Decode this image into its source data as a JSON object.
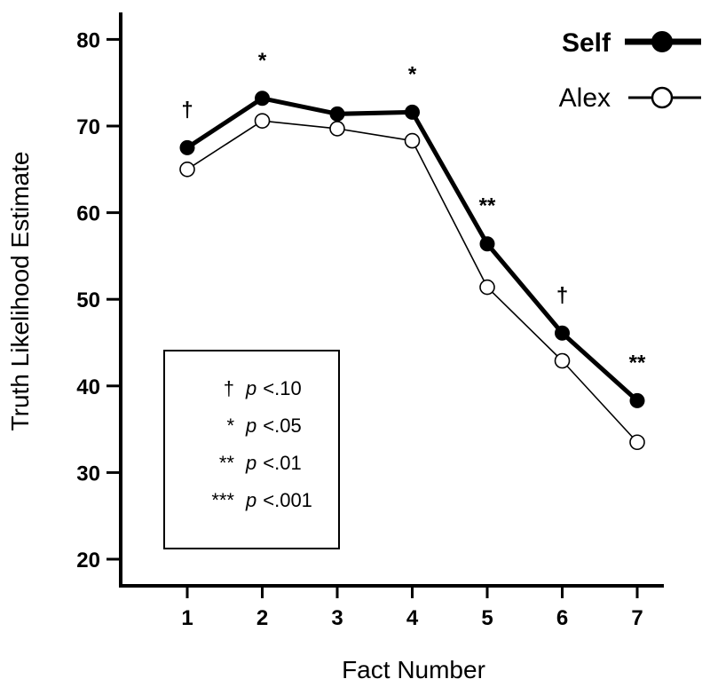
{
  "chart_data": {
    "type": "line",
    "title": "",
    "xlabel": "Fact Number",
    "ylabel": "Truth Likelihood Estimate",
    "x": [
      1,
      2,
      3,
      4,
      5,
      6,
      7
    ],
    "xticks": [
      "1",
      "2",
      "3",
      "4",
      "5",
      "6",
      "7"
    ],
    "yticks": [
      "20",
      "30",
      "40",
      "50",
      "60",
      "70",
      "80"
    ],
    "ylim": [
      20,
      80
    ],
    "grid": false,
    "legend_position": "top-right",
    "series": [
      {
        "name": "Self",
        "values": [
          67.5,
          73.2,
          71.4,
          71.6,
          56.4,
          46.1,
          38.3
        ],
        "marker": "filled-circle",
        "line": "thick"
      },
      {
        "name": "Alex",
        "values": [
          65.0,
          70.6,
          69.7,
          68.3,
          51.4,
          42.9,
          33.5
        ],
        "marker": "open-circle",
        "line": "thin"
      }
    ],
    "significance": [
      "†",
      "*",
      "",
      "*",
      "**",
      "†",
      "**"
    ],
    "significance_key": [
      {
        "symbol": "†",
        "label": "<.10"
      },
      {
        "symbol": "*",
        "label": "<.05"
      },
      {
        "symbol": "**",
        "label": "<.01"
      },
      {
        "symbol": "***",
        "label": "<.001"
      }
    ],
    "significance_stat": "p"
  }
}
